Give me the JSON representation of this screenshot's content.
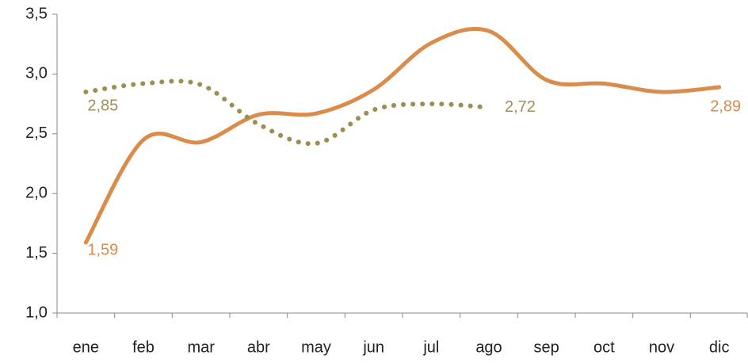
{
  "chart_data": {
    "type": "line",
    "categories": [
      "ene",
      "feb",
      "mar",
      "abr",
      "may",
      "jun",
      "jul",
      "ago",
      "sep",
      "oct",
      "nov",
      "dic"
    ],
    "series": [
      {
        "color": "#d98c4c",
        "style": "solid",
        "values": [
          1.59,
          2.45,
          2.43,
          2.66,
          2.67,
          2.87,
          3.26,
          3.36,
          2.95,
          2.92,
          2.85,
          2.89
        ],
        "value_labels": [
          "1,59",
          null,
          null,
          null,
          null,
          null,
          null,
          null,
          null,
          null,
          null,
          "2,89"
        ]
      },
      {
        "color": "#9c8e55",
        "style": "dotted",
        "values": [
          2.85,
          2.92,
          2.91,
          2.58,
          2.42,
          2.7,
          2.75,
          2.72,
          null,
          null,
          null,
          null
        ],
        "value_labels": [
          "2,85",
          null,
          null,
          null,
          null,
          null,
          null,
          "2,72",
          null,
          null,
          null,
          null
        ]
      }
    ],
    "ylim": [
      1.0,
      3.5
    ],
    "yticks": [
      {
        "value": 1.0,
        "label": "1,0"
      },
      {
        "value": 1.5,
        "label": "1,5"
      },
      {
        "value": 2.0,
        "label": "2,0"
      },
      {
        "value": 2.5,
        "label": "2,5"
      },
      {
        "value": 3.0,
        "label": "3,0"
      },
      {
        "value": 3.5,
        "label": "3,5"
      }
    ],
    "grid": false
  }
}
